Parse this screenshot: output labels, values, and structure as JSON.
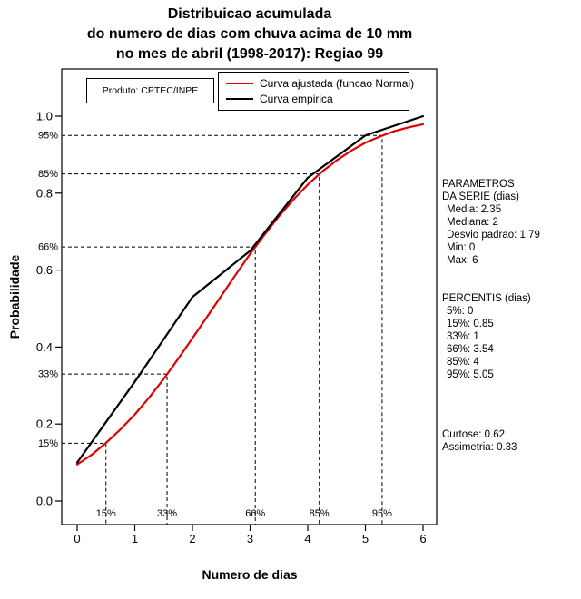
{
  "title": {
    "line1": "Distribuicao acumulada",
    "line2": "do numero de dias com chuva acima de 10 mm",
    "line3": "no mes de abril (1998-2017): Regiao 99"
  },
  "product_label": "Produto: CPTEC/INPE",
  "legend": {
    "items": [
      {
        "label": "Curva ajustada (funcao Normal)",
        "color": "#e00000"
      },
      {
        "label": "Curva empirica",
        "color": "#000000"
      }
    ]
  },
  "side_panel": {
    "parametros": {
      "heading1": "PARAMETROS",
      "heading2": "DA SERIE (dias)",
      "lines": [
        "Media: 2.35",
        "Mediana: 2",
        "Desvio padrao: 1.79",
        "Min: 0",
        "Max: 6"
      ]
    },
    "percentis": {
      "heading": "PERCENTIS (dias)",
      "lines": [
        "5%: 0",
        "15%: 0.85",
        "33%: 1",
        "66%: 3.54",
        "85%: 4",
        "95%: 5.05"
      ]
    },
    "moments": [
      "Curtose: 0.62",
      "Assimetria: 0.33"
    ]
  },
  "chart_data": {
    "type": "line",
    "title": "Distribuicao acumulada do numero de dias com chuva acima de 10 mm no mes de abril (1998-2017): Regiao 99",
    "xlabel": "Numero de dias",
    "ylabel": "Probabilidade",
    "xlim": [
      0,
      6
    ],
    "ylim": [
      0,
      1
    ],
    "grid": false,
    "legend_position": "top-center",
    "x_ticks": [
      0,
      1,
      2,
      3,
      4,
      5,
      6
    ],
    "y_ticks": [
      0.0,
      0.2,
      0.4,
      0.6,
      0.8,
      1.0
    ],
    "y_tick_labels": [
      "0.0",
      "0.2",
      "0.4",
      "0.6",
      "0.8",
      "1.0"
    ],
    "series": [
      {
        "name": "Curva ajustada (funcao Normal)",
        "color": "#e00000",
        "x": [
          0,
          0.25,
          0.5,
          0.75,
          1,
          1.25,
          1.5,
          1.75,
          2,
          2.25,
          2.5,
          2.75,
          3,
          3.25,
          3.5,
          3.75,
          4,
          4.25,
          4.5,
          4.75,
          5,
          5.25,
          5.5,
          5.75,
          6
        ],
        "y": [
          0.095,
          0.12,
          0.151,
          0.186,
          0.225,
          0.269,
          0.317,
          0.369,
          0.423,
          0.478,
          0.533,
          0.588,
          0.642,
          0.692,
          0.74,
          0.783,
          0.822,
          0.856,
          0.885,
          0.91,
          0.931,
          0.947,
          0.961,
          0.971,
          0.979
        ]
      },
      {
        "name": "Curva empirica",
        "color": "#000000",
        "x": [
          0,
          1,
          2,
          3,
          4,
          5,
          6
        ],
        "y": [
          0.1,
          0.31,
          0.53,
          0.65,
          0.84,
          0.95,
          1.0
        ]
      }
    ],
    "percentile_guides": [
      {
        "label": "15%",
        "p": 0.15,
        "x": 0.5
      },
      {
        "label": "33%",
        "p": 0.33,
        "x": 1.56
      },
      {
        "label": "66%",
        "p": 0.66,
        "x": 3.09
      },
      {
        "label": "85%",
        "p": 0.85,
        "x": 4.2
      },
      {
        "label": "95%",
        "p": 0.95,
        "x": 5.29
      }
    ]
  }
}
